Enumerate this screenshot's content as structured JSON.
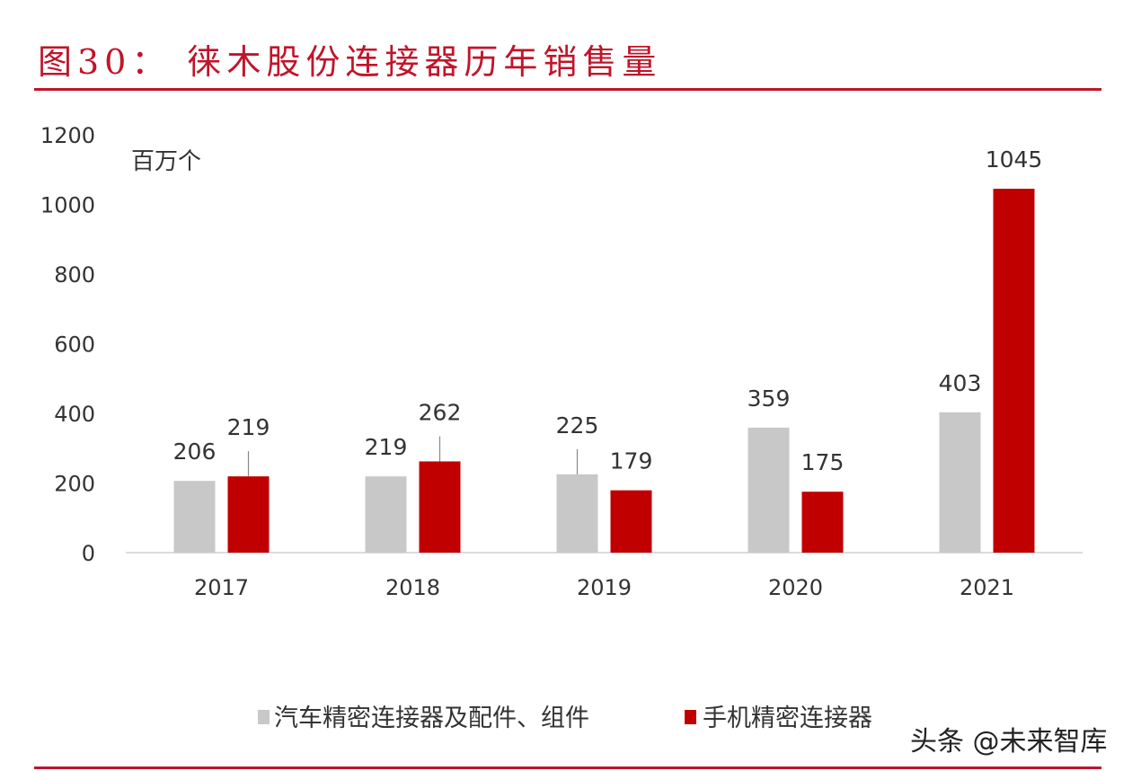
{
  "title": "图30： 徕木股份连接器历年销售量",
  "watermark": "头条 @未来智库",
  "chart_data": {
    "type": "bar",
    "title": "图30： 徕木股份连接器历年销售量",
    "ylabel": "百万个",
    "xlabel": "",
    "ylim": [
      0,
      1200
    ],
    "yticks": [
      0,
      200,
      400,
      600,
      800,
      1000,
      1200
    ],
    "grid": false,
    "legend_position": "bottom",
    "categories": [
      "2017",
      "2018",
      "2019",
      "2020",
      "2021"
    ],
    "series": [
      {
        "name": "汽车精密连接器及配件、组件",
        "color": "#c8c8c8",
        "values": [
          206,
          219,
          225,
          359,
          403
        ]
      },
      {
        "name": "手机精密连接器",
        "color": "#c00000",
        "values": [
          219,
          262,
          179,
          175,
          1045
        ]
      }
    ]
  }
}
